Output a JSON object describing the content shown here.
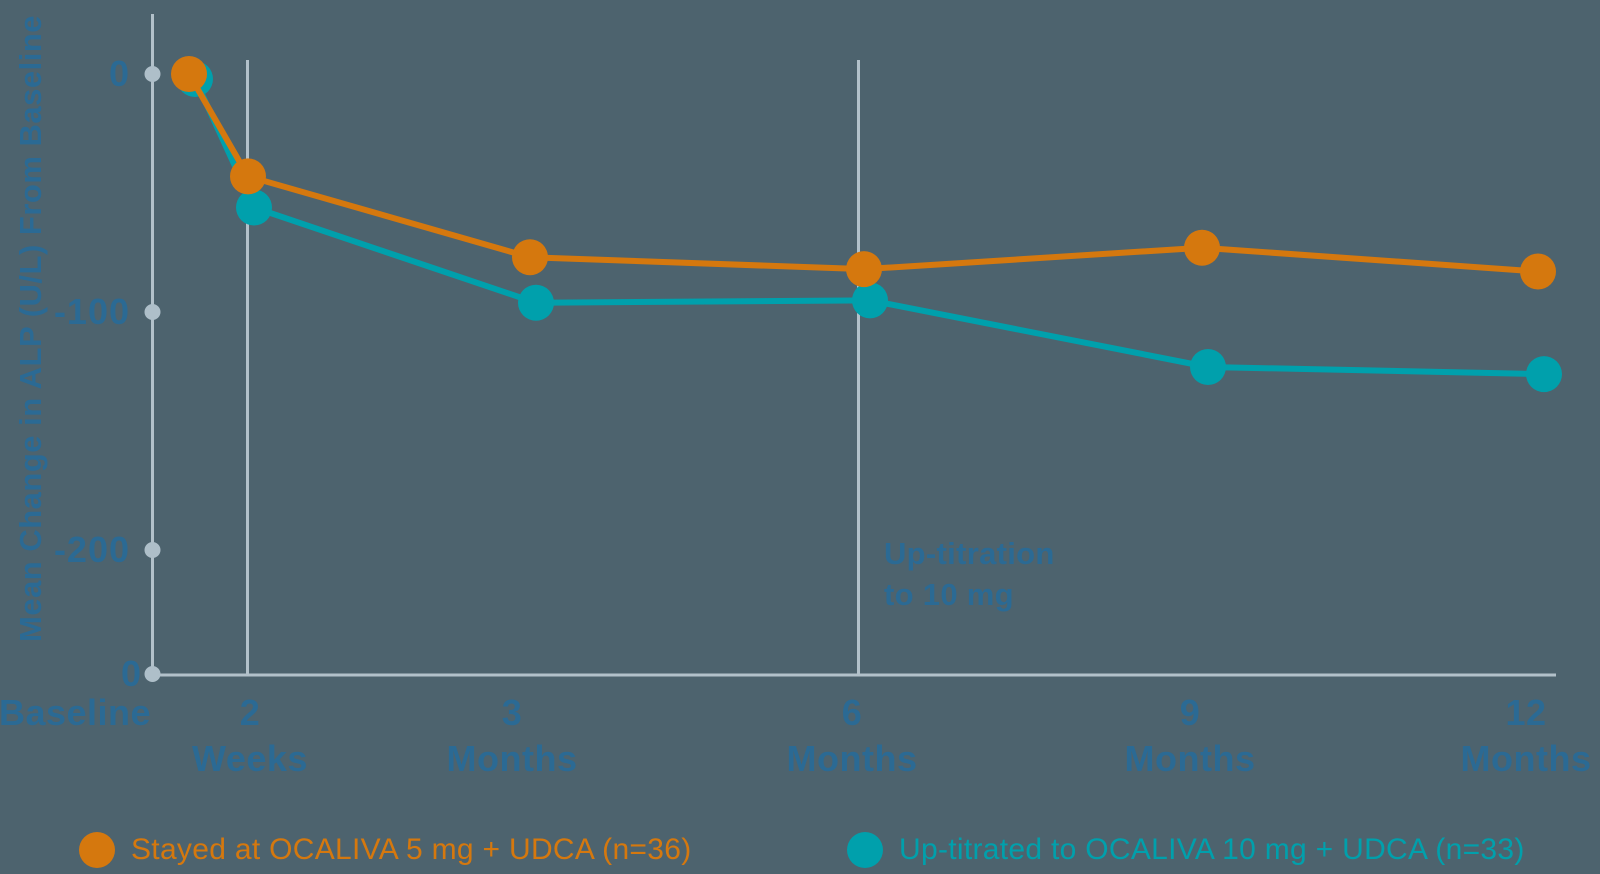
{
  "colors": {
    "background": "#4d636e",
    "axis_line": "#b2c1ca",
    "tick_dot": "#aebfc9",
    "text_blue": "#2b6a94",
    "orange": "#d5780e",
    "teal": "#00a0ac"
  },
  "y_axis": {
    "title": "Mean Change in ALP (U/L) From Baseline",
    "tick_labels": [
      "0",
      "-100",
      "-200"
    ],
    "origin_label": "0"
  },
  "x_axis": {
    "labels": [
      {
        "line1": "Baseline",
        "line2": ""
      },
      {
        "line1": "2",
        "line2": "Weeks"
      },
      {
        "line1": "3",
        "line2": "Months"
      },
      {
        "line1": "6",
        "line2": "Months"
      },
      {
        "line1": "9",
        "line2": "Months"
      },
      {
        "line1": "12",
        "line2": "Months"
      }
    ]
  },
  "annotation": {
    "line1": "Up-titration",
    "line2": "to 10 mg"
  },
  "legend": {
    "items": [
      {
        "label": "Stayed at OCALIVA 5 mg + UDCA (n=36)",
        "color": "#d5780e"
      },
      {
        "label": "Up-titrated to OCALIVA 10 mg + UDCA (n=33)",
        "color": "#00a0ac"
      }
    ]
  },
  "chart_data": {
    "type": "line",
    "x": [
      "Baseline",
      "2 Weeks",
      "3 Months",
      "6 Months",
      "9 Months",
      "12 Months"
    ],
    "series": [
      {
        "name": "Stayed at OCALIVA 5 mg + UDCA (n=36)",
        "color": "#d5780e",
        "values": [
          0,
          -43,
          -77,
          -82,
          -73,
          -83
        ]
      },
      {
        "name": "Up-titrated to OCALIVA 10 mg + UDCA (n=33)",
        "color": "#00a0ac",
        "values": [
          0,
          -54,
          -94,
          -93,
          -121,
          -124
        ]
      }
    ],
    "title": "",
    "xlabel": "",
    "ylabel": "Mean Change in ALP (U/L) From Baseline",
    "yticks": [
      0,
      -100,
      -200
    ],
    "ylim": [
      -253,
      25
    ],
    "grid": "vertical reference lines at 2 Weeks and 6 Months",
    "legend_position": "bottom",
    "annotations": [
      {
        "text": "Up-titration to 10 mg",
        "x": "6 Months"
      }
    ]
  }
}
